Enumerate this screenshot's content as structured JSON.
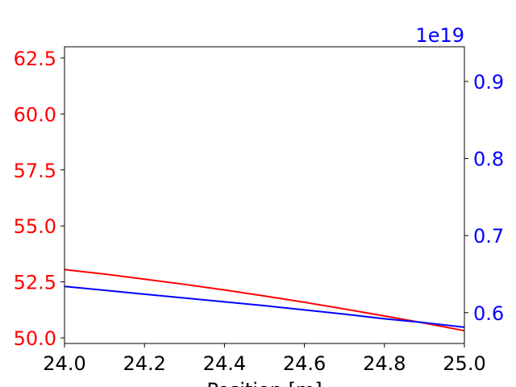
{
  "chart_data": {
    "type": "line",
    "xlabel": "Position [m]",
    "x_ticks": [
      "24.0",
      "24.2",
      "24.4",
      "24.6",
      "24.8",
      "25.0"
    ],
    "xlim": [
      24.0,
      25.0
    ],
    "grid": false,
    "left_axis": {
      "color": "#ff0000",
      "ylim": [
        49.75,
        63.0
      ],
      "ticks": [
        "50.0",
        "52.5",
        "55.0",
        "57.5",
        "60.0",
        "62.5"
      ]
    },
    "right_axis": {
      "color": "#0000ff",
      "ylim": [
        0.56,
        0.945
      ],
      "ticks": [
        "0.6",
        "0.7",
        "0.8",
        "0.9"
      ],
      "offset_text": "1e19"
    },
    "series": [
      {
        "axis": "left",
        "color": "#ff0000",
        "x": [
          24.0,
          24.1,
          24.2,
          24.3,
          24.4,
          24.5,
          24.6,
          24.7,
          24.8,
          24.9,
          25.0
        ],
        "y": [
          53.05,
          52.85,
          52.62,
          52.39,
          52.14,
          51.87,
          51.59,
          51.29,
          50.98,
          50.66,
          50.32
        ]
      },
      {
        "axis": "right",
        "color": "#0000ff",
        "x": [
          24.0,
          24.1,
          24.2,
          24.3,
          24.4,
          24.5,
          24.6,
          24.7,
          24.8,
          24.9,
          25.0
        ],
        "y": [
          0.634,
          0.629,
          0.624,
          0.619,
          0.614,
          0.609,
          0.6035,
          0.598,
          0.592,
          0.587,
          0.581
        ]
      }
    ]
  }
}
